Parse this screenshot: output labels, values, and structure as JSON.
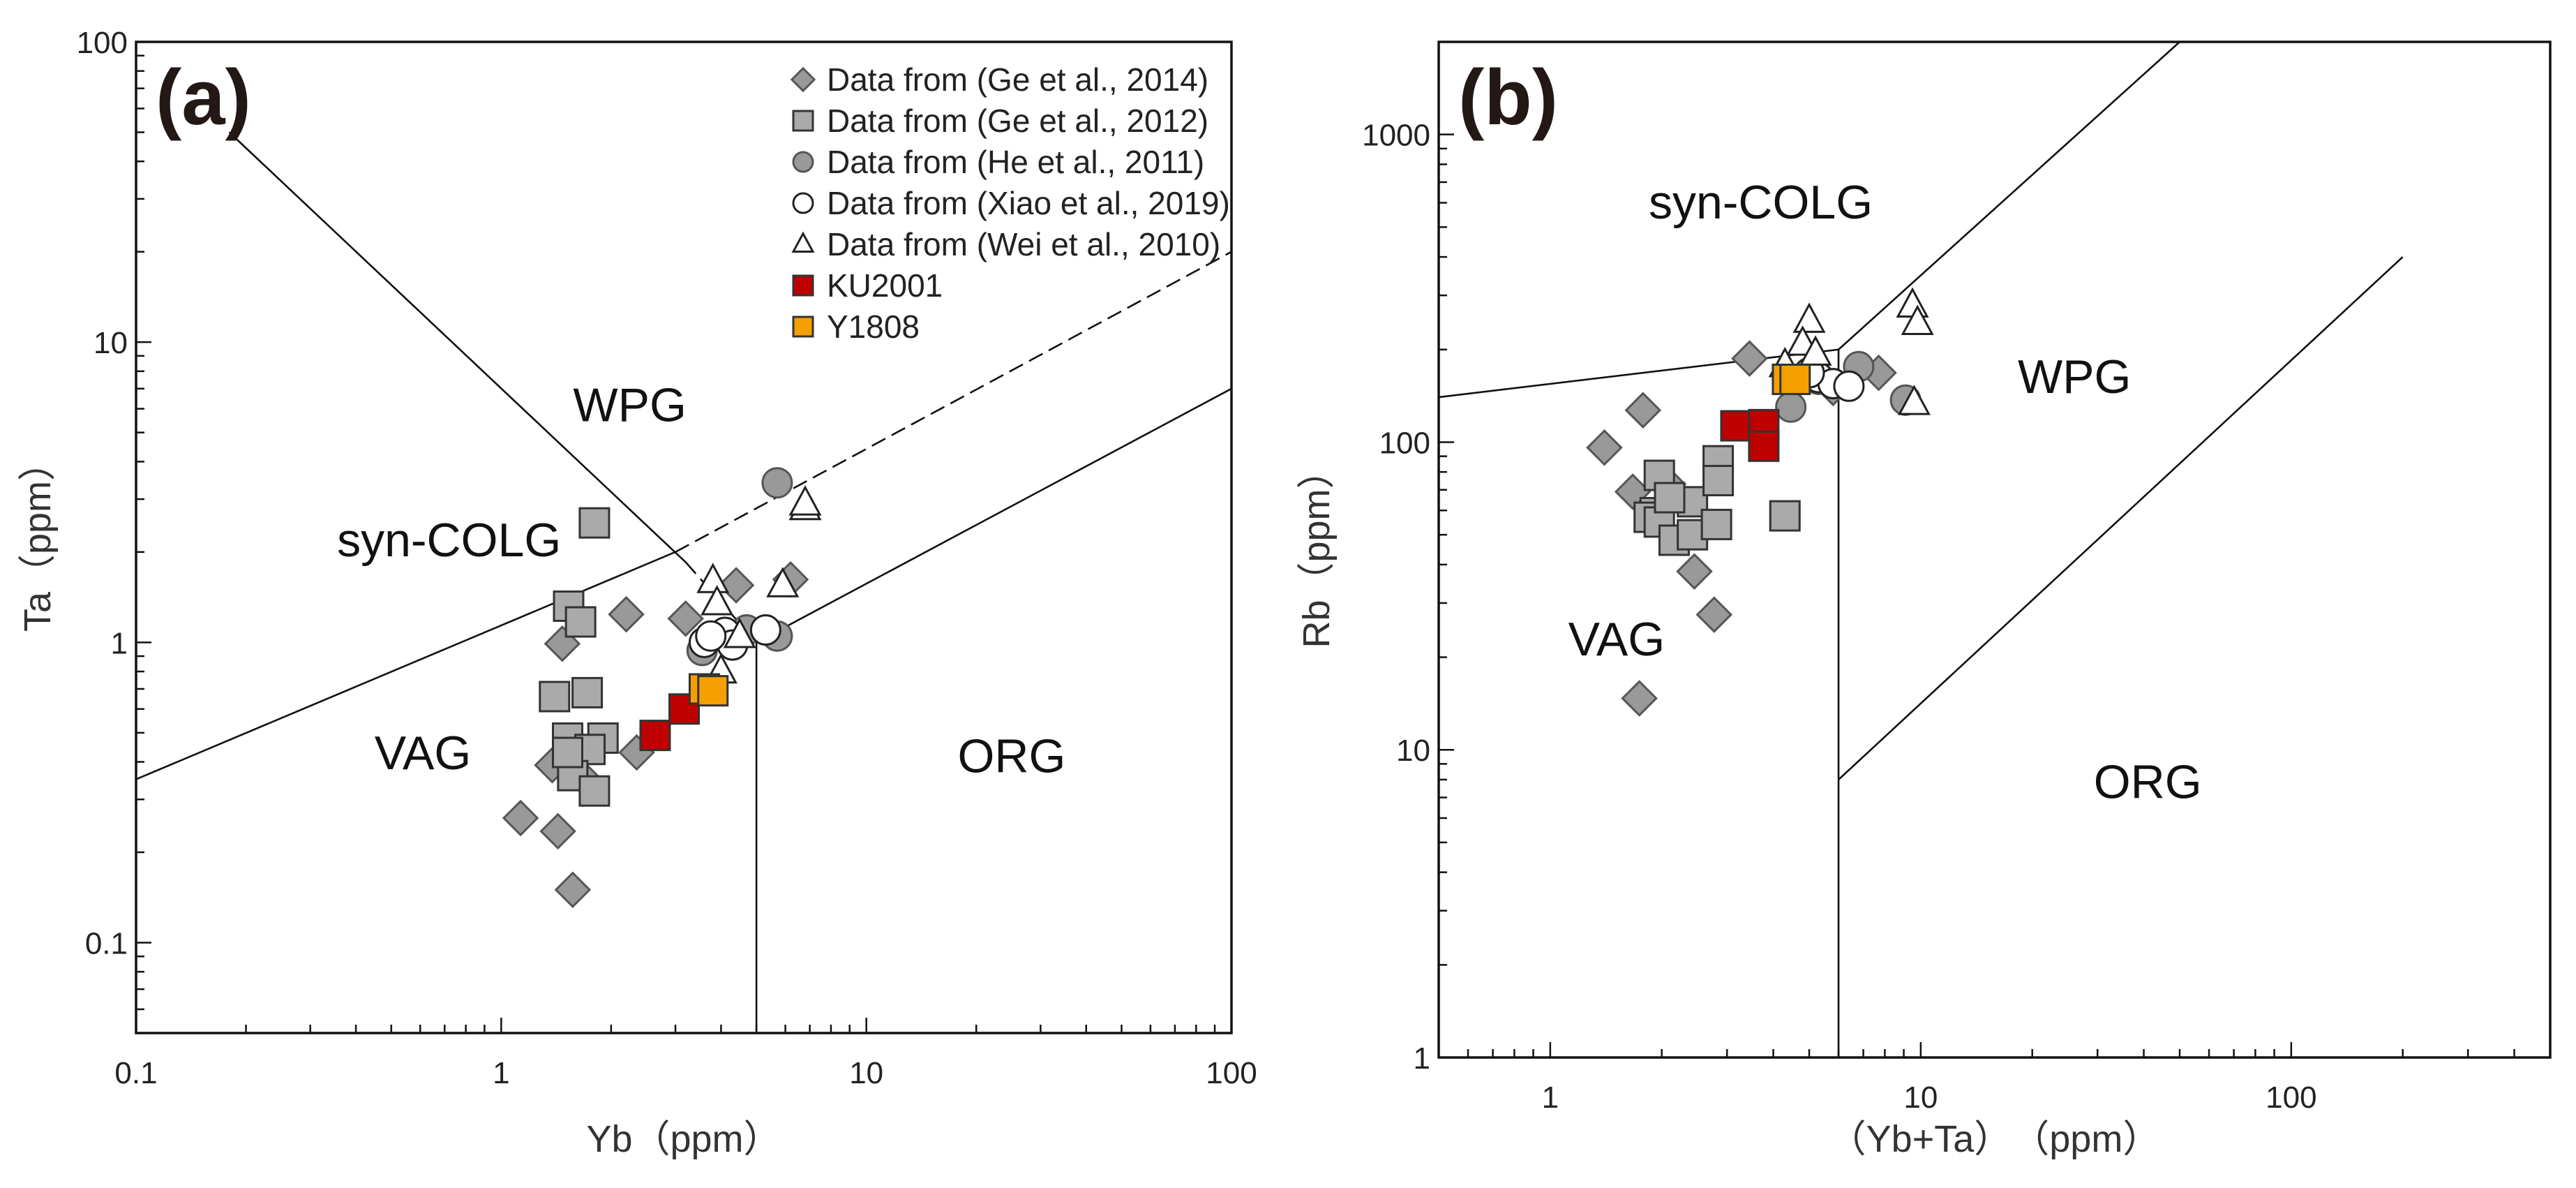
{
  "series_styles": {
    "Ge2014": {
      "shape": "diamond",
      "fill": "#999999",
      "stroke": "#555555"
    },
    "Ge2012": {
      "shape": "square",
      "fill": "#aaaaaa",
      "stroke": "#333333"
    },
    "He2011": {
      "shape": "circle",
      "fill": "#999999",
      "stroke": "#555555"
    },
    "Xiao2019": {
      "shape": "circle",
      "fill": "#ffffff",
      "stroke": "#222222"
    },
    "Wei2010": {
      "shape": "triangle",
      "fill": "#ffffff",
      "stroke": "#222222"
    },
    "KU2001": {
      "shape": "square",
      "fill": "#c00000",
      "stroke": "#333333"
    },
    "Y1808": {
      "shape": "square",
      "fill": "#f5a000",
      "stroke": "#333333"
    }
  },
  "chart_data": [
    {
      "type": "scatter",
      "panel_label": "(a)",
      "xlabel": "Yb（ppm）",
      "ylabel": "Ta（ppm）",
      "xscale": "log",
      "yscale": "log",
      "xlim": [
        0.1,
        100
      ],
      "ylim": [
        0.05,
        100
      ],
      "xticks": [
        {
          "v": 0.1,
          "label": "0.1"
        },
        {
          "v": 1,
          "label": "1"
        },
        {
          "v": 10,
          "label": "10"
        },
        {
          "v": 100,
          "label": "100"
        }
      ],
      "yticks": [
        {
          "v": 0.1,
          "label": "0.1"
        },
        {
          "v": 1,
          "label": "1"
        },
        {
          "v": 10,
          "label": "10"
        },
        {
          "v": 100,
          "label": "100"
        }
      ],
      "legend_position": "top-right",
      "legend": [
        {
          "key": "Ge2014",
          "label": "Data from (Ge et al., 2014)"
        },
        {
          "key": "Ge2012",
          "label": "Data from (Ge et al., 2012)"
        },
        {
          "key": "He2011",
          "label": "Data from (He et al., 2011)"
        },
        {
          "key": "Xiao2019",
          "label": "Data from (Xiao et al., 2019)"
        },
        {
          "key": "Wei2010",
          "label": "Data from (Wei et al., 2010)"
        },
        {
          "key": "KU2001",
          "label": "KU2001"
        },
        {
          "key": "Y1808",
          "label": "Y1808"
        }
      ],
      "regions": [
        {
          "label": "WPG",
          "x": 2.25,
          "y": 6.2
        },
        {
          "label": "syn-COLG",
          "x": 0.72,
          "y": 2.2
        },
        {
          "label": "VAG",
          "x": 0.61,
          "y": 0.43
        },
        {
          "label": "ORG",
          "x": 25,
          "y": 0.42
        }
      ],
      "boundaries": [
        {
          "points": [
            [
              0.18,
              50
            ],
            [
              3.2,
              1.85
            ]
          ],
          "dash": false
        },
        {
          "points": [
            [
              3.2,
              1.85
            ],
            [
              5,
              1
            ]
          ],
          "dash": true
        },
        {
          "points": [
            [
              0.1,
              0.35
            ],
            [
              3,
              2
            ]
          ],
          "dash": false
        },
        {
          "points": [
            [
              3,
              2
            ],
            [
              100,
              20
            ]
          ],
          "dash": true
        },
        {
          "points": [
            [
              5,
              1
            ],
            [
              100,
              7
            ]
          ],
          "dash": false
        },
        {
          "points": [
            [
              5,
              0.05
            ],
            [
              5,
              1
            ]
          ],
          "dash": false
        }
      ],
      "series": [
        {
          "key": "Ge2014",
          "points": [
            [
              1.13,
              0.26
            ],
            [
              1.43,
              0.235
            ],
            [
              1.57,
              0.15
            ],
            [
              1.47,
              0.99
            ],
            [
              2.2,
              1.24
            ],
            [
              1.38,
              0.39
            ],
            [
              1.73,
              0.34
            ],
            [
              2.35,
              0.43
            ],
            [
              3.2,
              1.2
            ],
            [
              4.4,
              1.55
            ],
            [
              6.2,
              1.62
            ]
          ]
        },
        {
          "key": "Ge2012",
          "points": [
            [
              1.8,
              2.5
            ],
            [
              1.53,
              1.32
            ],
            [
              1.65,
              1.17
            ],
            [
              1.4,
              0.66
            ],
            [
              1.72,
              0.68
            ],
            [
              1.52,
              0.48
            ],
            [
              1.9,
              0.48
            ],
            [
              1.75,
              0.44
            ],
            [
              1.57,
              0.36
            ],
            [
              1.8,
              0.32
            ],
            [
              1.52,
              0.43
            ]
          ]
        },
        {
          "key": "He2011",
          "points": [
            [
              5.7,
              3.4
            ],
            [
              5.7,
              1.05
            ],
            [
              3.55,
              0.94
            ],
            [
              4.7,
              1.1
            ]
          ]
        },
        {
          "key": "Xiao2019",
          "points": [
            [
              3.6,
              1.0
            ],
            [
              4.1,
              1.08
            ],
            [
              4.3,
              0.98
            ],
            [
              5.3,
              1.1
            ],
            [
              3.75,
              1.05
            ]
          ]
        },
        {
          "key": "Wei2010",
          "points": [
            [
              6.8,
              2.8
            ],
            [
              6.8,
              2.9
            ],
            [
              3.8,
              1.6
            ],
            [
              3.9,
              1.35
            ],
            [
              5.9,
              1.55
            ],
            [
              4.0,
              0.8
            ],
            [
              4.5,
              1.05
            ]
          ]
        },
        {
          "key": "KU2001",
          "points": [
            [
              2.64,
              0.49
            ],
            [
              3.17,
              0.6
            ]
          ]
        },
        {
          "key": "Y1808",
          "points": [
            [
              3.6,
              0.7
            ],
            [
              3.8,
              0.69
            ]
          ]
        }
      ]
    },
    {
      "type": "scatter",
      "panel_label": "(b)",
      "xlabel": "（Yb+Ta）　（ppm）",
      "ylabel": "Rb（ppm）",
      "xscale": "log",
      "yscale": "log",
      "xlim": [
        0.5,
        500
      ],
      "ylim": [
        1,
        2000
      ],
      "xticks": [
        {
          "v": 1,
          "label": "1"
        },
        {
          "v": 10,
          "label": "10"
        },
        {
          "v": 100,
          "label": "100"
        }
      ],
      "yticks": [
        {
          "v": 1,
          "label": "1"
        },
        {
          "v": 10,
          "label": "10"
        },
        {
          "v": 100,
          "label": "100"
        },
        {
          "v": 1000,
          "label": "1000"
        }
      ],
      "regions": [
        {
          "label": "syn-COLG",
          "x": 3.7,
          "y": 605
        },
        {
          "label": "WPG",
          "x": 26,
          "y": 164
        },
        {
          "label": "VAG",
          "x": 1.51,
          "y": 23
        },
        {
          "label": "ORG",
          "x": 41,
          "y": 7.9
        }
      ],
      "boundaries": [
        {
          "points": [
            [
              0.5,
              140
            ],
            [
              6,
              200
            ]
          ],
          "dash": false
        },
        {
          "points": [
            [
              6,
              1
            ],
            [
              6,
              200
            ]
          ],
          "dash": false
        },
        {
          "points": [
            [
              6,
              200
            ],
            [
              50,
              2000
            ]
          ],
          "dash": false
        },
        {
          "points": [
            [
              6,
              8
            ],
            [
              200,
              400
            ]
          ],
          "dash": false
        }
      ],
      "series": [
        {
          "key": "Ge2014",
          "points": [
            [
              3.45,
              187
            ],
            [
              1.78,
              127
            ],
            [
              1.4,
              96
            ],
            [
              1.67,
              69
            ],
            [
              2.08,
              73
            ],
            [
              2.45,
              38
            ],
            [
              2.77,
              27.5
            ],
            [
              1.74,
              14.7
            ],
            [
              7.7,
              168
            ],
            [
              5.8,
              150
            ]
          ]
        },
        {
          "key": "Ge2012",
          "points": [
            [
              1.97,
              78
            ],
            [
              1.92,
              59
            ],
            [
              1.85,
              57
            ],
            [
              1.97,
              55
            ],
            [
              2.16,
              48
            ],
            [
              2.42,
              50
            ],
            [
              2.42,
              64
            ],
            [
              2.81,
              54
            ],
            [
              2.84,
              87
            ],
            [
              2.84,
              75
            ],
            [
              4.3,
              57.6
            ],
            [
              2.1,
              66
            ]
          ]
        },
        {
          "key": "He2011",
          "points": [
            [
              4.46,
              130
            ],
            [
              6.8,
              176
            ],
            [
              9.1,
              137
            ],
            [
              5.3,
              160
            ]
          ]
        },
        {
          "key": "Xiao2019",
          "points": [
            [
              5.3,
              162
            ],
            [
              5.8,
              155
            ],
            [
              6.4,
              152
            ],
            [
              5.0,
              168
            ]
          ]
        },
        {
          "key": "Wei2010",
          "points": [
            [
              5.0,
              248
            ],
            [
              4.8,
              209
            ],
            [
              5.2,
              194
            ],
            [
              9.5,
              278
            ],
            [
              9.8,
              244
            ],
            [
              9.6,
              134
            ],
            [
              4.3,
              178
            ]
          ]
        },
        {
          "key": "KU2001",
          "points": [
            [
              3.17,
              113
            ],
            [
              3.77,
              114
            ],
            [
              3.77,
              97
            ]
          ]
        },
        {
          "key": "Y1808",
          "points": [
            [
              4.37,
              160
            ],
            [
              4.58,
              160
            ]
          ]
        }
      ]
    }
  ]
}
